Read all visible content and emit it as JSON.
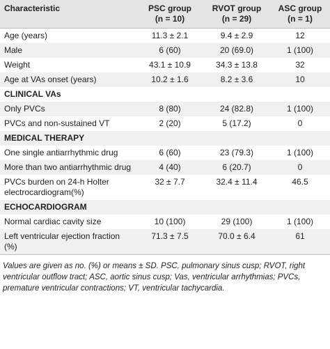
{
  "table": {
    "columns": [
      {
        "title": "Characteristic"
      },
      {
        "title": "PSC group",
        "n": "(n = 10)"
      },
      {
        "title": "RVOT group",
        "n": "(n = 29)"
      },
      {
        "title": "ASC group",
        "n": "(n = 1)"
      }
    ],
    "rows": [
      {
        "cells": [
          "Age (years)",
          "11.3 ± 2.1",
          "9.4 ± 2.9",
          "12"
        ]
      },
      {
        "cells": [
          "Male",
          "6 (60)",
          "20 (69.0)",
          "1 (100)"
        ]
      },
      {
        "cells": [
          "Weight",
          "43.1 ± 10.9",
          "34.3 ± 13.8",
          "32"
        ]
      },
      {
        "cells": [
          "Age at VAs onset (years)",
          "10.2 ± 1.6",
          "8.2 ± 3.6",
          "10"
        ]
      },
      {
        "section": "CLINICAL VAs"
      },
      {
        "cells": [
          "Only PVCs",
          "8 (80)",
          "24 (82.8)",
          "1 (100)"
        ]
      },
      {
        "cells": [
          "PVCs and non-sustained VT",
          "2 (20)",
          "5 (17.2)",
          "0"
        ]
      },
      {
        "section": "MEDICAL THERAPY"
      },
      {
        "cells": [
          "One single antiarrhythmic drug",
          "6 (60)",
          "23 (79.3)",
          "1 (100)"
        ]
      },
      {
        "cells": [
          "More than two antiarrhythmic drug",
          "4 (40)",
          "6 (20.7)",
          "0"
        ]
      },
      {
        "cells": [
          "PVCs burden on 24-h Holter electrocardiogram(%)",
          "32 ± 7.7",
          "32.4 ± 11.4",
          "46.5"
        ]
      },
      {
        "section": "ECHOCARDIOGRAM"
      },
      {
        "cells": [
          "Normal cardiac cavity size",
          "10 (100)",
          "29 (100)",
          "1 (100)"
        ]
      },
      {
        "cells": [
          "Left ventricular ejection fraction (%)",
          "71.3 ± 7.5",
          "70.0 ± 6.4",
          "61"
        ]
      }
    ],
    "footnote": "Values are given as no. (%) or means ± SD. PSC, pulmonary sinus cusp; RVOT, right ventricular outflow tract; ASC, aortic sinus cusp; Vas, ventricular arrhythmias; PVCs, premature ventricular contractions; VT, ventricular tachycardia."
  }
}
